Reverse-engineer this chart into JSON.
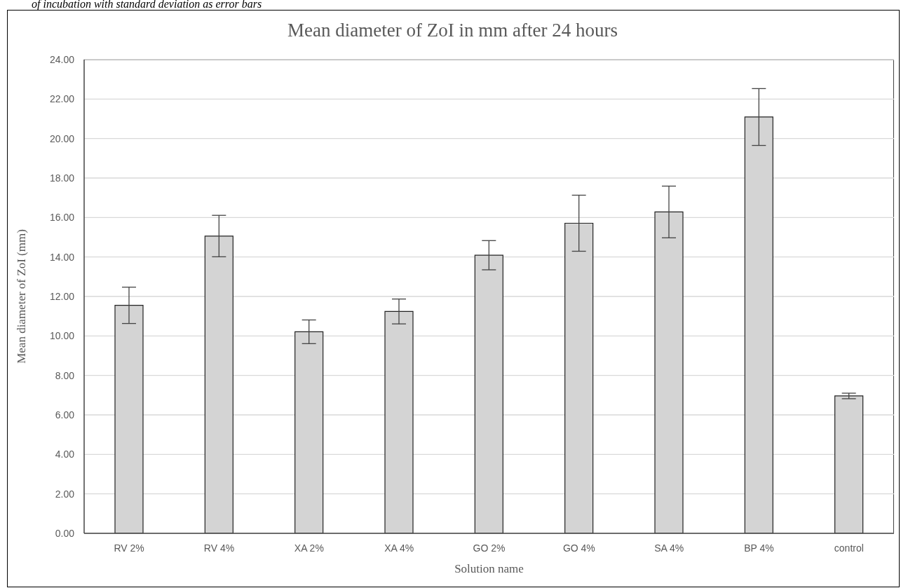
{
  "chart_data": {
    "type": "bar",
    "title": "Mean diameter of ZoI in mm after 24 hours",
    "xlabel": "Solution name",
    "ylabel": "Mean diameter of ZoI (mm)",
    "annotations": [
      "of incubation with standard deviation as error bars"
    ],
    "categories": [
      "RV 2%",
      "RV 4%",
      "XA 2%",
      "XA 4%",
      "GO 2%",
      "GO 4%",
      "SA 4%",
      "BP 4%",
      "control"
    ],
    "values": [
      11.55,
      15.06,
      10.21,
      11.24,
      14.09,
      15.71,
      16.28,
      21.09,
      6.96
    ],
    "errors": [
      0.92,
      1.05,
      0.6,
      0.63,
      0.74,
      1.42,
      1.31,
      1.44,
      0.14
    ],
    "color": "#d4d4d4",
    "ylim": [
      0,
      24
    ],
    "yticks": [
      {
        "value": 0,
        "label": "0.00"
      },
      {
        "value": 2,
        "label": "2.00"
      },
      {
        "value": 4,
        "label": "4.00"
      },
      {
        "value": 6,
        "label": "6.00"
      },
      {
        "value": 8,
        "label": "8.00"
      },
      {
        "value": 10,
        "label": "10.00"
      },
      {
        "value": 12,
        "label": "12.00"
      },
      {
        "value": 14,
        "label": "14.00"
      },
      {
        "value": 16,
        "label": "16.00"
      },
      {
        "value": 18,
        "label": "18.00"
      },
      {
        "value": 20,
        "label": "20.00"
      },
      {
        "value": 22,
        "label": "22.00"
      },
      {
        "value": 24,
        "label": "24.00"
      }
    ],
    "grid": "y"
  }
}
